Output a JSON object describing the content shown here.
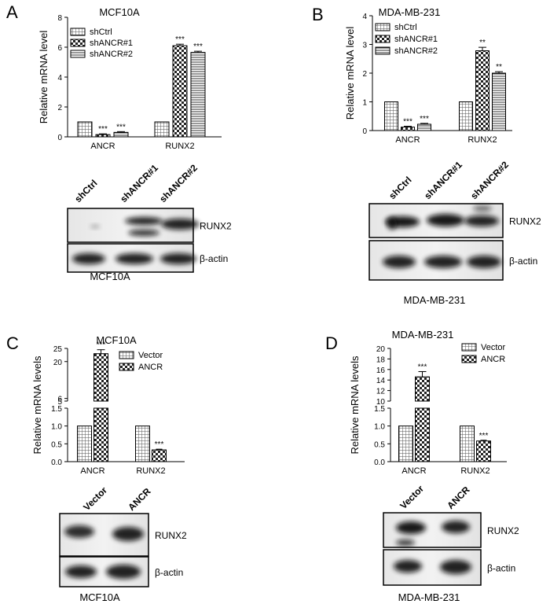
{
  "panels": [
    {
      "letter": "A",
      "title": "MCF10A",
      "ylabel": "Relative mRNA level",
      "legend": [
        "shCtrl",
        "shANCR#1",
        "shANCR#2"
      ],
      "blot": {
        "lanes": [
          "shCtrl",
          "shANCR#1",
          "shANCR#2"
        ],
        "bands": [
          "RUNX2",
          "β-actin"
        ],
        "caption": "MCF10A"
      }
    },
    {
      "letter": "B",
      "title": "MDA-MB-231",
      "ylabel": "Relative mRNA level",
      "legend": [
        "shCtrl",
        "shANCR#1",
        "shANCR#2"
      ],
      "blot": {
        "lanes": [
          "shCtrl",
          "shANCR#1",
          "shANCR#2"
        ],
        "bands": [
          "RUNX2",
          "β-actin"
        ],
        "caption": "MDA-MB-231"
      }
    },
    {
      "letter": "C",
      "title": "MCF10A",
      "ylabel": "Relative mRNA levels",
      "legend": [
        "Vector",
        "ANCR"
      ],
      "blot": {
        "lanes": [
          "Vector",
          "ANCR"
        ],
        "bands": [
          "RUNX2",
          "β-actin"
        ],
        "caption": "MCF10A"
      }
    },
    {
      "letter": "D",
      "title": "MDA-MB-231",
      "ylabel": "Relative mRNA levels",
      "legend": [
        "Vector",
        "ANCR"
      ],
      "blot": {
        "lanes": [
          "Vector",
          "ANCR"
        ],
        "bands": [
          "RUNX2",
          "β-actin"
        ],
        "caption": "MDA-MB-231"
      }
    }
  ],
  "chart_data": [
    {
      "type": "bar",
      "panel": "A",
      "title": "MCF10A",
      "ylabel": "Relative mRNA level",
      "xlabel": "",
      "categories": [
        "ANCR",
        "RUNX2"
      ],
      "ylim": [
        0,
        8
      ],
      "yticks": [
        0,
        2,
        4,
        6,
        8
      ],
      "legend_position": "top-left",
      "series": [
        {
          "name": "shCtrl",
          "values": [
            1.0,
            1.0
          ],
          "errors": [
            0,
            0
          ],
          "sig": [
            "",
            ""
          ],
          "pattern": "grid"
        },
        {
          "name": "shANCR#1",
          "values": [
            0.15,
            6.1
          ],
          "errors": [
            0.05,
            0.1
          ],
          "sig": [
            "***",
            "***"
          ],
          "pattern": "check"
        },
        {
          "name": "shANCR#2",
          "values": [
            0.3,
            5.65
          ],
          "errors": [
            0.05,
            0.08
          ],
          "sig": [
            "***",
            "***"
          ],
          "pattern": "hline"
        }
      ]
    },
    {
      "type": "bar",
      "panel": "B",
      "title": "MDA-MB-231",
      "ylabel": "Relative mRNA level",
      "xlabel": "",
      "categories": [
        "ANCR",
        "RUNX2"
      ],
      "ylim": [
        0,
        4
      ],
      "yticks": [
        0,
        1,
        2,
        3,
        4
      ],
      "legend_position": "top-left",
      "series": [
        {
          "name": "shCtrl",
          "values": [
            1.0,
            1.0
          ],
          "errors": [
            0,
            0
          ],
          "sig": [
            "",
            ""
          ],
          "pattern": "grid"
        },
        {
          "name": "shANCR#1",
          "values": [
            0.12,
            2.78
          ],
          "errors": [
            0.03,
            0.12
          ],
          "sig": [
            "***",
            "**"
          ],
          "pattern": "check"
        },
        {
          "name": "shANCR#2",
          "values": [
            0.22,
            2.0
          ],
          "errors": [
            0.03,
            0.05
          ],
          "sig": [
            "***",
            "**"
          ],
          "pattern": "hline"
        }
      ]
    },
    {
      "type": "bar",
      "panel": "C",
      "title": "MCF10A",
      "ylabel": "Relative mRNA levels",
      "xlabel": "",
      "categories": [
        "ANCR",
        "RUNX2"
      ],
      "axis_break": {
        "lower": [
          0,
          1.5
        ],
        "upper": [
          5,
          25
        ]
      },
      "yticks_lower": [
        0.0,
        0.5,
        1.0,
        1.5
      ],
      "yticks_upper": [
        5,
        6,
        20,
        25
      ],
      "legend_position": "top-right",
      "series": [
        {
          "name": "Vector",
          "values": [
            1.0,
            1.0
          ],
          "errors": [
            0,
            0
          ],
          "sig": [
            "",
            ""
          ],
          "pattern": "grid"
        },
        {
          "name": "ANCR",
          "values": [
            23.0,
            0.33
          ],
          "errors": [
            1.5,
            0.02
          ],
          "sig": [
            "***",
            "***"
          ],
          "pattern": "check"
        }
      ]
    },
    {
      "type": "bar",
      "panel": "D",
      "title": "MDA-MB-231",
      "ylabel": "Relative mRNA levels",
      "xlabel": "",
      "categories": [
        "ANCR",
        "RUNX2"
      ],
      "axis_break": {
        "lower": [
          0,
          1.5
        ],
        "upper": [
          10,
          20
        ]
      },
      "yticks_lower": [
        0.0,
        0.5,
        1.0,
        1.5
      ],
      "yticks_upper": [
        10,
        12,
        14,
        16,
        18,
        20
      ],
      "legend_position": "top-right",
      "series": [
        {
          "name": "Vector",
          "values": [
            1.0,
            1.0
          ],
          "errors": [
            0,
            0
          ],
          "sig": [
            "",
            ""
          ],
          "pattern": "grid"
        },
        {
          "name": "ANCR",
          "values": [
            14.6,
            0.58
          ],
          "errors": [
            1.0,
            0.02
          ],
          "sig": [
            "***",
            "***"
          ],
          "pattern": "check"
        }
      ]
    }
  ]
}
